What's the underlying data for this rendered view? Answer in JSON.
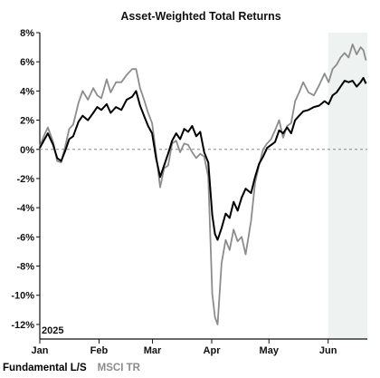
{
  "chart_data": {
    "type": "line",
    "title": "Asset-Weighted Total Returns",
    "year_label": "2025",
    "x_unit": "weeks since Jan 1, 2025",
    "xlim": [
      0,
      24.5
    ],
    "x_ticks": [
      {
        "x": 0,
        "label": "Jan"
      },
      {
        "x": 4.43,
        "label": "Feb"
      },
      {
        "x": 8.43,
        "label": "Mar"
      },
      {
        "x": 12.86,
        "label": "Apr"
      },
      {
        "x": 17.14,
        "label": "May"
      },
      {
        "x": 21.57,
        "label": "Jun"
      }
    ],
    "ylim": [
      -13,
      8
    ],
    "y_ticks": [
      {
        "y": 8,
        "label": "8%"
      },
      {
        "y": 6,
        "label": "6%"
      },
      {
        "y": 4,
        "label": "4%"
      },
      {
        "y": 2,
        "label": "2%"
      },
      {
        "y": 0,
        "label": "0%"
      },
      {
        "y": -2,
        "label": "-2%"
      },
      {
        "y": -4,
        "label": "-4%"
      },
      {
        "y": -6,
        "label": "-6%"
      },
      {
        "y": -8,
        "label": "-8%"
      },
      {
        "y": -10,
        "label": "-10%"
      },
      {
        "y": -12,
        "label": "-12%"
      }
    ],
    "zero_line": true,
    "shaded_region": {
      "x_start": 21.57,
      "x_end": 24.5,
      "color": "#eef2f0"
    },
    "legend": {
      "placement": "bottom-left"
    },
    "series": [
      {
        "name": "Fundamental L/S",
        "color": "#000000",
        "points": [
          [
            0,
            0.1
          ],
          [
            0.3,
            0.6
          ],
          [
            0.6,
            1.1
          ],
          [
            1.0,
            0.3
          ],
          [
            1.3,
            -0.6
          ],
          [
            1.6,
            -0.8
          ],
          [
            1.9,
            -0.1
          ],
          [
            2.2,
            0.7
          ],
          [
            2.5,
            0.9
          ],
          [
            2.9,
            1.9
          ],
          [
            3.2,
            2.3
          ],
          [
            3.6,
            2.0
          ],
          [
            4.0,
            2.5
          ],
          [
            4.3,
            2.9
          ],
          [
            4.6,
            2.7
          ],
          [
            5.0,
            3.1
          ],
          [
            5.3,
            2.5
          ],
          [
            5.7,
            2.9
          ],
          [
            6.1,
            2.7
          ],
          [
            6.5,
            3.4
          ],
          [
            6.9,
            3.6
          ],
          [
            7.2,
            4.0
          ],
          [
            7.5,
            3.0
          ],
          [
            7.8,
            2.3
          ],
          [
            8.1,
            1.6
          ],
          [
            8.4,
            1.1
          ],
          [
            8.7,
            -0.6
          ],
          [
            9.0,
            -1.9
          ],
          [
            9.3,
            -1.1
          ],
          [
            9.6,
            -0.3
          ],
          [
            9.9,
            0.6
          ],
          [
            10.2,
            1.1
          ],
          [
            10.5,
            0.7
          ],
          [
            10.8,
            1.4
          ],
          [
            11.1,
            1.2
          ],
          [
            11.4,
            1.6
          ],
          [
            11.7,
            0.9
          ],
          [
            12.0,
            1.2
          ],
          [
            12.3,
            -0.2
          ],
          [
            12.6,
            -0.9
          ],
          [
            12.9,
            -4.5
          ],
          [
            13.1,
            -5.8
          ],
          [
            13.3,
            -6.2
          ],
          [
            13.6,
            -5.4
          ],
          [
            13.9,
            -4.4
          ],
          [
            14.2,
            -4.7
          ],
          [
            14.5,
            -3.6
          ],
          [
            14.8,
            -4.2
          ],
          [
            15.1,
            -3.3
          ],
          [
            15.4,
            -2.7
          ],
          [
            15.8,
            -3.0
          ],
          [
            16.1,
            -1.9
          ],
          [
            16.4,
            -1.0
          ],
          [
            16.7,
            -0.5
          ],
          [
            17.0,
            0.1
          ],
          [
            17.3,
            0.3
          ],
          [
            17.6,
            0.5
          ],
          [
            17.9,
            1.3
          ],
          [
            18.2,
            1.1
          ],
          [
            18.5,
            1.5
          ],
          [
            18.8,
            1.1
          ],
          [
            19.1,
            2.0
          ],
          [
            19.4,
            2.3
          ],
          [
            19.7,
            2.6
          ],
          [
            20.1,
            2.7
          ],
          [
            20.5,
            2.9
          ],
          [
            20.9,
            3.0
          ],
          [
            21.3,
            3.3
          ],
          [
            21.6,
            3.1
          ],
          [
            21.9,
            3.7
          ],
          [
            22.2,
            3.9
          ],
          [
            22.5,
            4.3
          ],
          [
            22.8,
            4.7
          ],
          [
            23.1,
            4.6
          ],
          [
            23.4,
            4.7
          ],
          [
            23.7,
            4.3
          ],
          [
            24.0,
            4.6
          ],
          [
            24.2,
            4.9
          ],
          [
            24.4,
            4.5
          ]
        ]
      },
      {
        "name": "MSCI TR",
        "color": "#8c8c8c",
        "points": [
          [
            0,
            0.2
          ],
          [
            0.3,
            0.9
          ],
          [
            0.6,
            1.5
          ],
          [
            1.0,
            0.5
          ],
          [
            1.3,
            -0.8
          ],
          [
            1.6,
            -0.9
          ],
          [
            1.9,
            0.2
          ],
          [
            2.2,
            1.4
          ],
          [
            2.5,
            1.7
          ],
          [
            2.9,
            3.2
          ],
          [
            3.2,
            4.0
          ],
          [
            3.6,
            3.4
          ],
          [
            4.0,
            4.2
          ],
          [
            4.3,
            3.7
          ],
          [
            4.6,
            3.5
          ],
          [
            5.0,
            4.8
          ],
          [
            5.3,
            3.9
          ],
          [
            5.7,
            4.6
          ],
          [
            6.1,
            4.6
          ],
          [
            6.5,
            5.1
          ],
          [
            6.9,
            5.5
          ],
          [
            7.2,
            5.5
          ],
          [
            7.5,
            4.2
          ],
          [
            7.8,
            3.4
          ],
          [
            8.1,
            2.5
          ],
          [
            8.4,
            1.8
          ],
          [
            8.7,
            -0.3
          ],
          [
            9.0,
            -2.6
          ],
          [
            9.3,
            -1.3
          ],
          [
            9.6,
            -1.1
          ],
          [
            9.9,
            0.4
          ],
          [
            10.2,
            0.6
          ],
          [
            10.5,
            -0.2
          ],
          [
            10.8,
            0.4
          ],
          [
            11.1,
            0.3
          ],
          [
            11.4,
            -0.2
          ],
          [
            11.7,
            -0.6
          ],
          [
            12.0,
            -0.3
          ],
          [
            12.3,
            -0.5
          ],
          [
            12.6,
            -1.9
          ],
          [
            12.9,
            -9.9
          ],
          [
            13.1,
            -11.5
          ],
          [
            13.3,
            -12.0
          ],
          [
            13.6,
            -7.8
          ],
          [
            13.9,
            -6.2
          ],
          [
            14.2,
            -6.9
          ],
          [
            14.5,
            -5.5
          ],
          [
            14.8,
            -6.3
          ],
          [
            15.1,
            -6.0
          ],
          [
            15.4,
            -7.2
          ],
          [
            15.8,
            -4.9
          ],
          [
            16.1,
            -2.3
          ],
          [
            16.4,
            -1.1
          ],
          [
            16.7,
            0.0
          ],
          [
            17.0,
            0.4
          ],
          [
            17.3,
            0.7
          ],
          [
            17.6,
            1.3
          ],
          [
            17.9,
            2.0
          ],
          [
            18.2,
            0.8
          ],
          [
            18.5,
            1.6
          ],
          [
            18.8,
            1.8
          ],
          [
            19.1,
            3.3
          ],
          [
            19.4,
            3.9
          ],
          [
            19.7,
            4.6
          ],
          [
            20.1,
            3.9
          ],
          [
            20.5,
            3.7
          ],
          [
            20.9,
            4.4
          ],
          [
            21.3,
            5.2
          ],
          [
            21.6,
            4.6
          ],
          [
            21.9,
            5.5
          ],
          [
            22.2,
            5.8
          ],
          [
            22.5,
            6.3
          ],
          [
            22.8,
            6.6
          ],
          [
            23.1,
            6.3
          ],
          [
            23.4,
            7.2
          ],
          [
            23.7,
            6.5
          ],
          [
            24.0,
            7.0
          ],
          [
            24.2,
            6.8
          ],
          [
            24.4,
            6.1
          ]
        ]
      }
    ]
  }
}
